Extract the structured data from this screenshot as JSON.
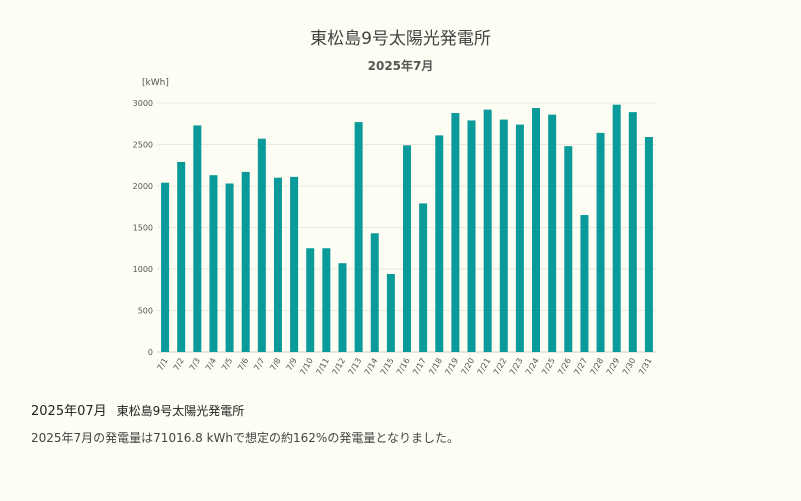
{
  "chart_data": {
    "type": "bar",
    "title": "東松島9号太陽光発電所",
    "subtitle": "2025年7月",
    "ylabel": "[kWh]",
    "xlabel": "",
    "ylim": [
      0,
      3000
    ],
    "yticks": [
      0,
      500,
      1000,
      1500,
      2000,
      2500,
      3000
    ],
    "grid": true,
    "bar_color": "#0a9a9a",
    "categories": [
      "7/1",
      "7/2",
      "7/3",
      "7/4",
      "7/5",
      "7/6",
      "7/7",
      "7/8",
      "7/9",
      "7/10",
      "7/11",
      "7/12",
      "7/13",
      "7/14",
      "7/15",
      "7/16",
      "7/17",
      "7/18",
      "7/19",
      "7/20",
      "7/21",
      "7/22",
      "7/23",
      "7/24",
      "7/25",
      "7/26",
      "7/27",
      "7/28",
      "7/29",
      "7/30",
      "7/31"
    ],
    "values": [
      2040,
      2290,
      2730,
      2130,
      2030,
      2170,
      2570,
      2100,
      2110,
      1250,
      1250,
      1070,
      2770,
      1430,
      940,
      2490,
      1790,
      2610,
      2880,
      2790,
      2920,
      2800,
      2740,
      2940,
      2860,
      2480,
      1650,
      2640,
      2980,
      2890,
      2590
    ]
  },
  "caption": {
    "period": "2025年07月",
    "plant": "東松島9号太陽光発電所",
    "summary": "2025年7月の発電量は71016.8 kWhで想定の約162%の発電量となりました。"
  }
}
